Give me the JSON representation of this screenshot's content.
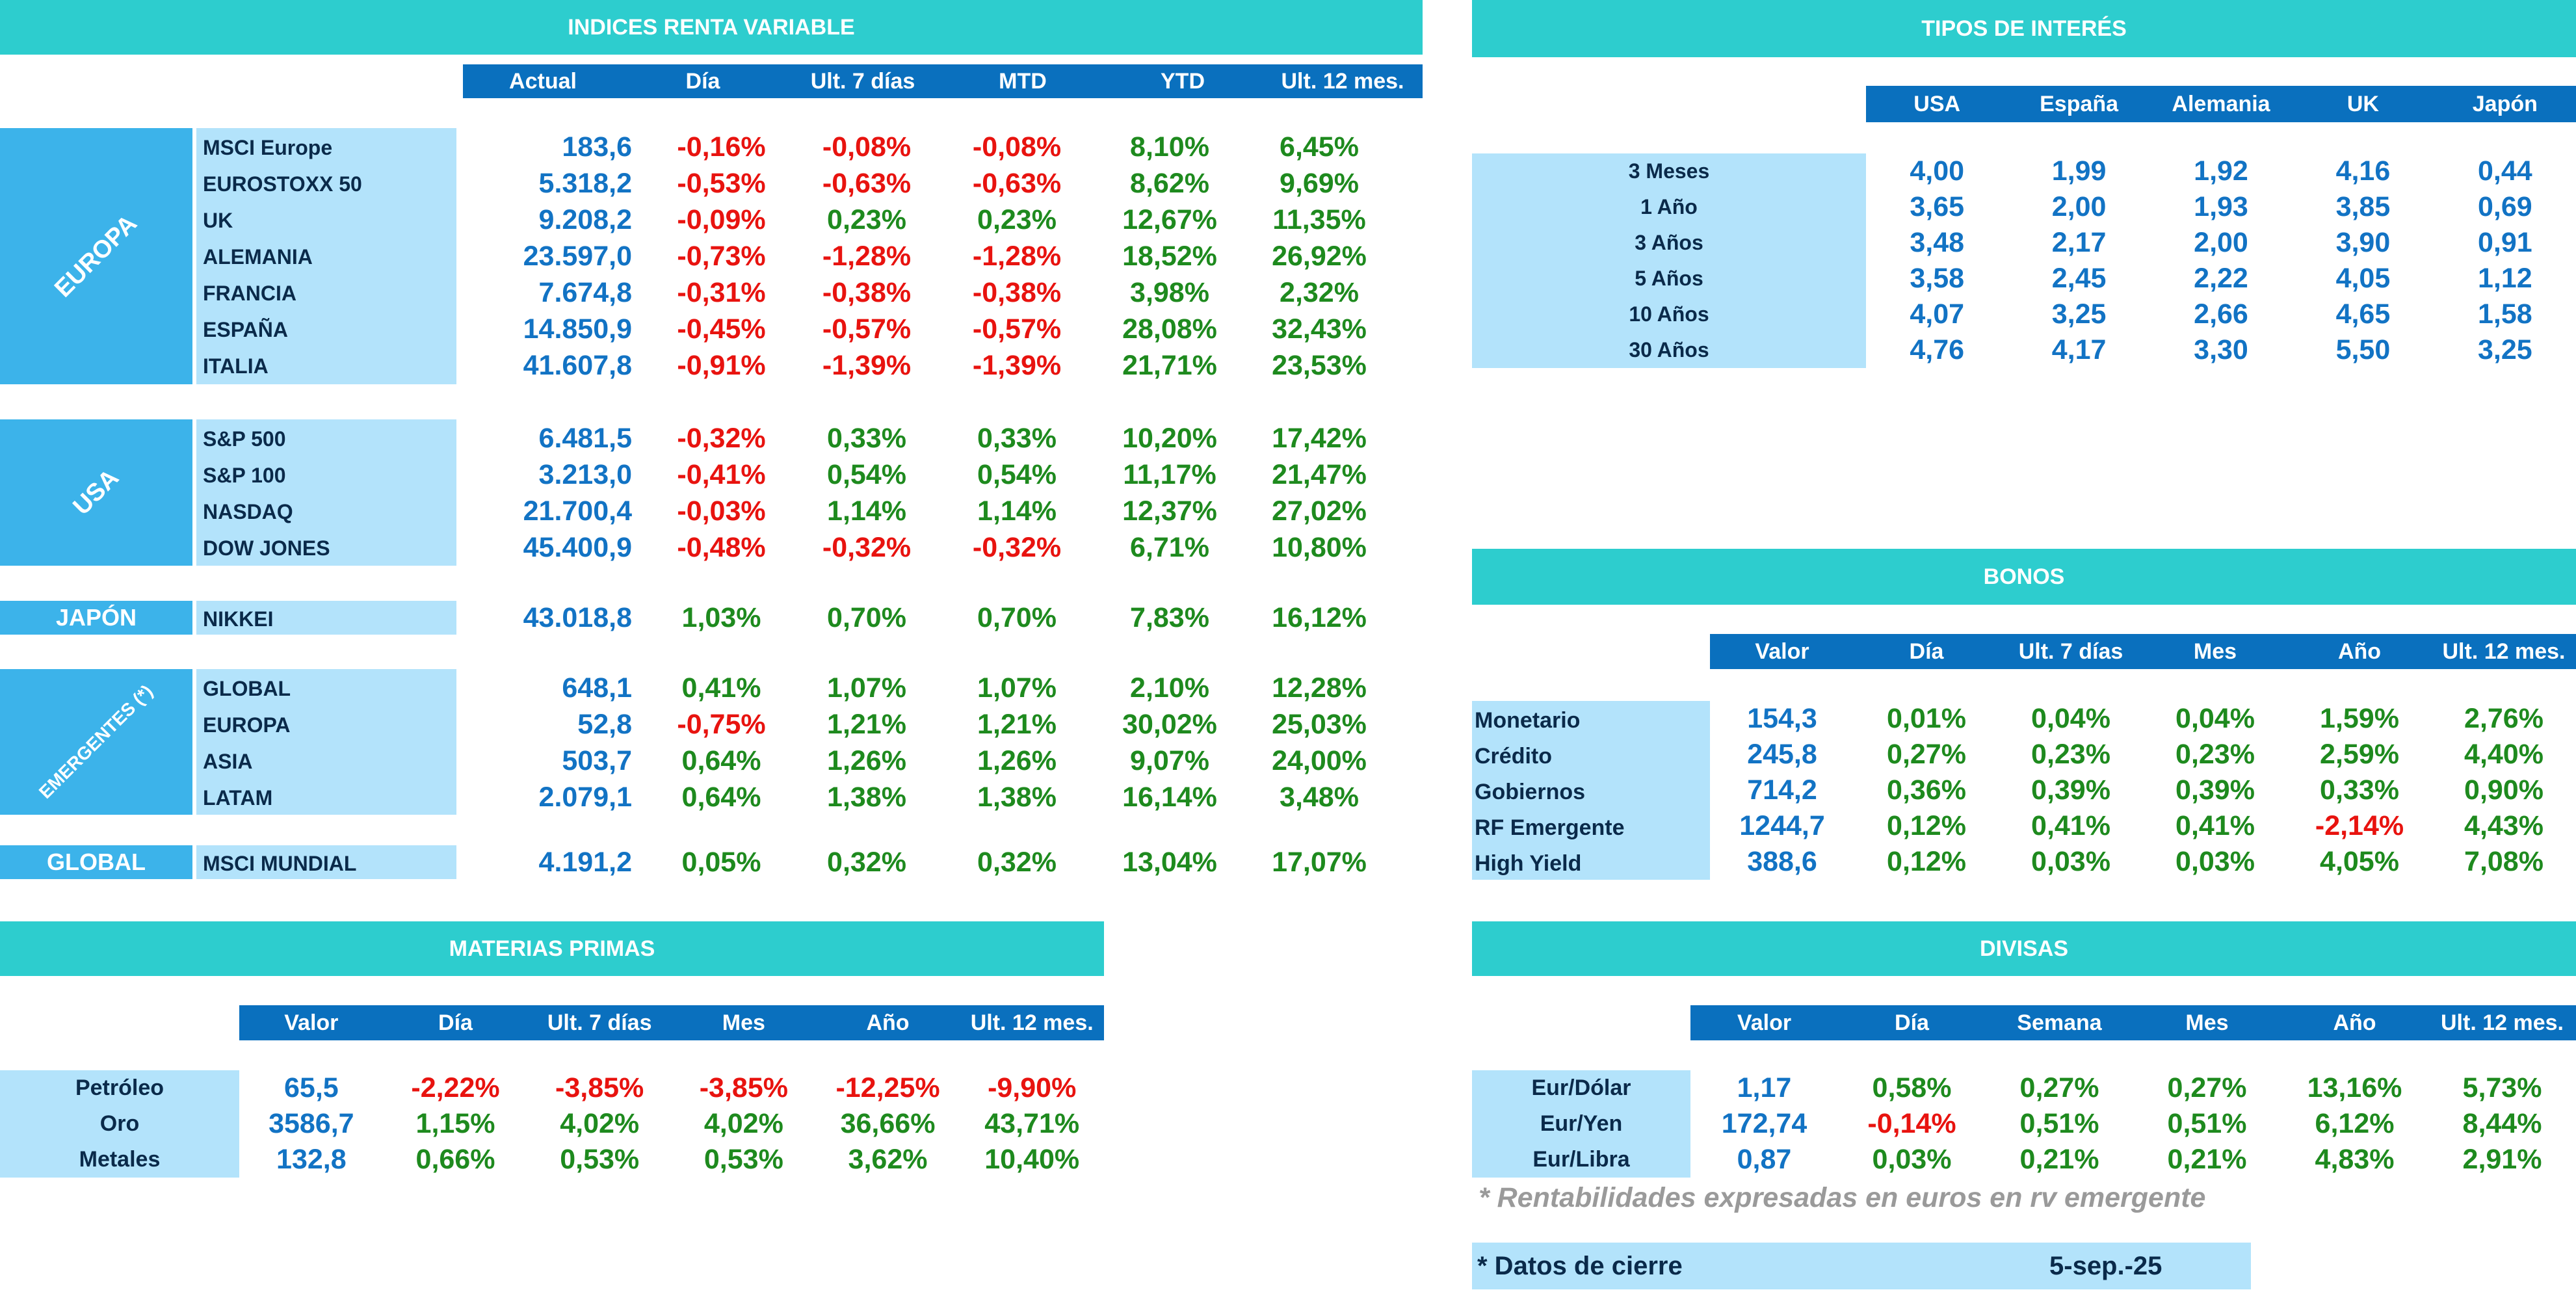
{
  "renta_variable": {
    "title": "INDICES RENTA VARIABLE",
    "headers": [
      "Actual",
      "Día",
      "Ult. 7 días",
      "MTD",
      "YTD",
      "Ult. 12 mes."
    ],
    "groups": [
      {
        "label": "EUROPA",
        "rows": [
          {
            "name": "MSCI Europe",
            "values": [
              "183,6",
              "-0,16%",
              "-0,08%",
              "-0,08%",
              "8,10%",
              "6,45%"
            ]
          },
          {
            "name": "EUROSTOXX 50",
            "values": [
              "5.318,2",
              "-0,53%",
              "-0,63%",
              "-0,63%",
              "8,62%",
              "9,69%"
            ]
          },
          {
            "name": "UK",
            "values": [
              "9.208,2",
              "-0,09%",
              "0,23%",
              "0,23%",
              "12,67%",
              "11,35%"
            ]
          },
          {
            "name": "ALEMANIA",
            "values": [
              "23.597,0",
              "-0,73%",
              "-1,28%",
              "-1,28%",
              "18,52%",
              "26,92%"
            ]
          },
          {
            "name": "FRANCIA",
            "values": [
              "7.674,8",
              "-0,31%",
              "-0,38%",
              "-0,38%",
              "3,98%",
              "2,32%"
            ]
          },
          {
            "name": "ESPAÑA",
            "values": [
              "14.850,9",
              "-0,45%",
              "-0,57%",
              "-0,57%",
              "28,08%",
              "32,43%"
            ]
          },
          {
            "name": "ITALIA",
            "values": [
              "41.607,8",
              "-0,91%",
              "-1,39%",
              "-1,39%",
              "21,71%",
              "23,53%"
            ]
          }
        ]
      },
      {
        "label": "USA",
        "rows": [
          {
            "name": "S&P 500",
            "values": [
              "6.481,5",
              "-0,32%",
              "0,33%",
              "0,33%",
              "10,20%",
              "17,42%"
            ]
          },
          {
            "name": "S&P 100",
            "values": [
              "3.213,0",
              "-0,41%",
              "0,54%",
              "0,54%",
              "11,17%",
              "21,47%"
            ]
          },
          {
            "name": "NASDAQ",
            "values": [
              "21.700,4",
              "-0,03%",
              "1,14%",
              "1,14%",
              "12,37%",
              "27,02%"
            ]
          },
          {
            "name": "DOW JONES",
            "values": [
              "45.400,9",
              "-0,48%",
              "-0,32%",
              "-0,32%",
              "6,71%",
              "10,80%"
            ]
          }
        ]
      },
      {
        "label": "JAPÓN",
        "rows": [
          {
            "name": "NIKKEI",
            "values": [
              "43.018,8",
              "1,03%",
              "0,70%",
              "0,70%",
              "7,83%",
              "16,12%"
            ]
          }
        ]
      },
      {
        "label": "EMERGENTES (*)",
        "rows": [
          {
            "name": "GLOBAL",
            "values": [
              "648,1",
              "0,41%",
              "1,07%",
              "1,07%",
              "2,10%",
              "12,28%"
            ]
          },
          {
            "name": "EUROPA",
            "values": [
              "52,8",
              "-0,75%",
              "1,21%",
              "1,21%",
              "30,02%",
              "25,03%"
            ]
          },
          {
            "name": "ASIA",
            "values": [
              "503,7",
              "0,64%",
              "1,26%",
              "1,26%",
              "9,07%",
              "24,00%"
            ]
          },
          {
            "name": "LATAM",
            "values": [
              "2.079,1",
              "0,64%",
              "1,38%",
              "1,38%",
              "16,14%",
              "3,48%"
            ]
          }
        ]
      },
      {
        "label": "GLOBAL",
        "rows": [
          {
            "name": "MSCI MUNDIAL",
            "values": [
              "4.191,2",
              "0,05%",
              "0,32%",
              "0,32%",
              "13,04%",
              "17,07%"
            ]
          }
        ]
      }
    ]
  },
  "tipos_interes": {
    "title": "TIPOS DE INTERÉS",
    "headers": [
      "USA",
      "España",
      "Alemania",
      "UK",
      "Japón"
    ],
    "rows": [
      {
        "name": "3 Meses",
        "values": [
          "4,00",
          "1,99",
          "1,92",
          "4,16",
          "0,44"
        ]
      },
      {
        "name": "1 Año",
        "values": [
          "3,65",
          "2,00",
          "1,93",
          "3,85",
          "0,69"
        ]
      },
      {
        "name": "3 Años",
        "values": [
          "3,48",
          "2,17",
          "2,00",
          "3,90",
          "0,91"
        ]
      },
      {
        "name": "5 Años",
        "values": [
          "3,58",
          "2,45",
          "2,22",
          "4,05",
          "1,12"
        ]
      },
      {
        "name": "10 Años",
        "values": [
          "4,07",
          "3,25",
          "2,66",
          "4,65",
          "1,58"
        ]
      },
      {
        "name": "30 Años",
        "values": [
          "4,76",
          "4,17",
          "3,30",
          "5,50",
          "3,25"
        ]
      }
    ]
  },
  "bonos": {
    "title": "BONOS",
    "headers": [
      "Valor",
      "Día",
      "Ult. 7 días",
      "Mes",
      "Año",
      "Ult. 12 mes."
    ],
    "rows": [
      {
        "name": "Monetario",
        "values": [
          "154,3",
          "0,01%",
          "0,04%",
          "0,04%",
          "1,59%",
          "2,76%"
        ]
      },
      {
        "name": "Crédito",
        "values": [
          "245,8",
          "0,27%",
          "0,23%",
          "0,23%",
          "2,59%",
          "4,40%"
        ]
      },
      {
        "name": "Gobiernos",
        "values": [
          "714,2",
          "0,36%",
          "0,39%",
          "0,39%",
          "0,33%",
          "0,90%"
        ]
      },
      {
        "name": "RF Emergente",
        "values": [
          "1244,7",
          "0,12%",
          "0,41%",
          "0,41%",
          "-2,14%",
          "4,43%"
        ]
      },
      {
        "name": "High Yield",
        "values": [
          "388,6",
          "0,12%",
          "0,03%",
          "0,03%",
          "4,05%",
          "7,08%"
        ]
      }
    ]
  },
  "materias_primas": {
    "title": "MATERIAS PRIMAS",
    "headers": [
      "Valor",
      "Día",
      "Ult. 7 días",
      "Mes",
      "Año",
      "Ult. 12 mes."
    ],
    "rows": [
      {
        "name": "Petróleo",
        "values": [
          "65,5",
          "-2,22%",
          "-3,85%",
          "-3,85%",
          "-12,25%",
          "-9,90%"
        ]
      },
      {
        "name": "Oro",
        "values": [
          "3586,7",
          "1,15%",
          "4,02%",
          "4,02%",
          "36,66%",
          "43,71%"
        ]
      },
      {
        "name": "Metales",
        "values": [
          "132,8",
          "0,66%",
          "0,53%",
          "0,53%",
          "3,62%",
          "10,40%"
        ]
      }
    ]
  },
  "divisas": {
    "title": "DIVISAS",
    "headers": [
      "Valor",
      "Día",
      "Semana",
      "Mes",
      "Año",
      "Ult. 12 mes."
    ],
    "rows": [
      {
        "name": "Eur/Dólar",
        "values": [
          "1,17",
          "0,58%",
          "0,27%",
          "0,27%",
          "13,16%",
          "5,73%"
        ]
      },
      {
        "name": "Eur/Yen",
        "values": [
          "172,74",
          "-0,14%",
          "0,51%",
          "0,51%",
          "6,12%",
          "8,44%"
        ]
      },
      {
        "name": "Eur/Libra",
        "values": [
          "0,87",
          "0,03%",
          "0,21%",
          "0,21%",
          "4,83%",
          "2,91%"
        ]
      }
    ]
  },
  "footnote": "* Rentabilidades expresadas en euros en rv emergente",
  "cierre": {
    "label": "* Datos de cierre",
    "date": "5-sep.-25"
  },
  "colors": {
    "teal": "#2dcdce",
    "header_blue": "#0a70be",
    "block_blue": "#3cb3ea",
    "label_bg": "#b3e3fb",
    "value_blue": "#1273c4",
    "positive": "#1e8a1e",
    "negative": "#e8130f"
  }
}
